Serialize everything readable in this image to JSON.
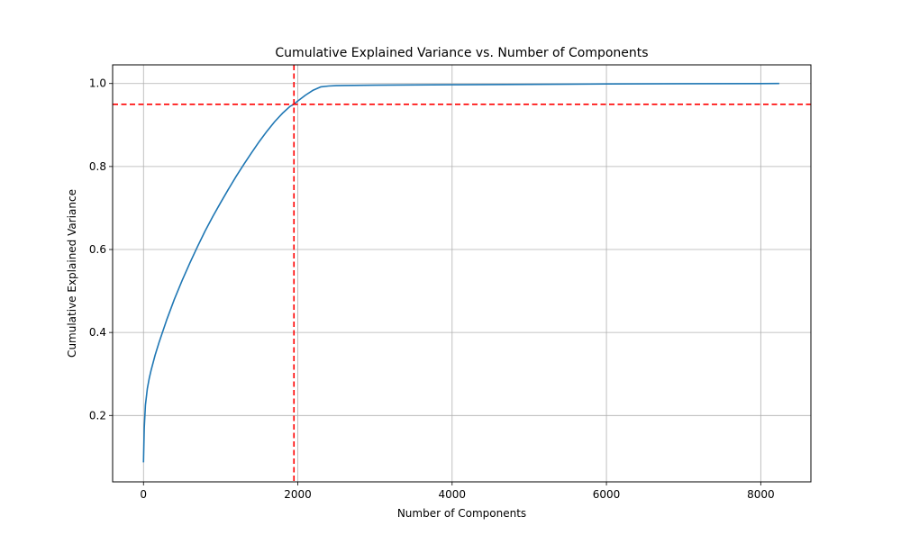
{
  "chart_data": {
    "type": "line",
    "title": "Cumulative Explained Variance vs. Number of Components",
    "xlabel": "Number of Components",
    "ylabel": "Cumulative Explained Variance",
    "xlim": [
      -400,
      8650
    ],
    "ylim": [
      0.04,
      1.045
    ],
    "grid": true,
    "x_ticks": [
      0,
      2000,
      4000,
      6000,
      8000
    ],
    "x_tick_labels": [
      "0",
      "2000",
      "4000",
      "6000",
      "8000"
    ],
    "y_ticks": [
      0.2,
      0.4,
      0.6,
      0.8,
      1.0
    ],
    "y_tick_labels": [
      "0.2",
      "0.4",
      "0.6",
      "0.8",
      "1.0"
    ],
    "series": [
      {
        "color": "#1f77b4",
        "x": [
          0,
          10,
          25,
          50,
          75,
          100,
          150,
          200,
          300,
          400,
          500,
          600,
          700,
          800,
          900,
          1000,
          1100,
          1200,
          1300,
          1400,
          1500,
          1600,
          1700,
          1800,
          1900,
          1950,
          2000,
          2100,
          2200,
          2300,
          2400,
          2500,
          3000,
          4000,
          5000,
          6000,
          7000,
          8000,
          8240
        ],
        "y": [
          0.087,
          0.17,
          0.225,
          0.265,
          0.29,
          0.31,
          0.345,
          0.375,
          0.43,
          0.48,
          0.525,
          0.567,
          0.607,
          0.645,
          0.68,
          0.713,
          0.745,
          0.776,
          0.805,
          0.833,
          0.86,
          0.885,
          0.908,
          0.928,
          0.945,
          0.95,
          0.958,
          0.972,
          0.984,
          0.992,
          0.994,
          0.995,
          0.996,
          0.997,
          0.998,
          0.999,
          0.9995,
          0.9999,
          1.0
        ]
      }
    ],
    "reference_lines": [
      {
        "orientation": "horizontal",
        "value": 0.95,
        "color": "#ff0000",
        "style": "dashed"
      },
      {
        "orientation": "vertical",
        "value": 1950,
        "color": "#ff0000",
        "style": "dashed"
      }
    ]
  }
}
